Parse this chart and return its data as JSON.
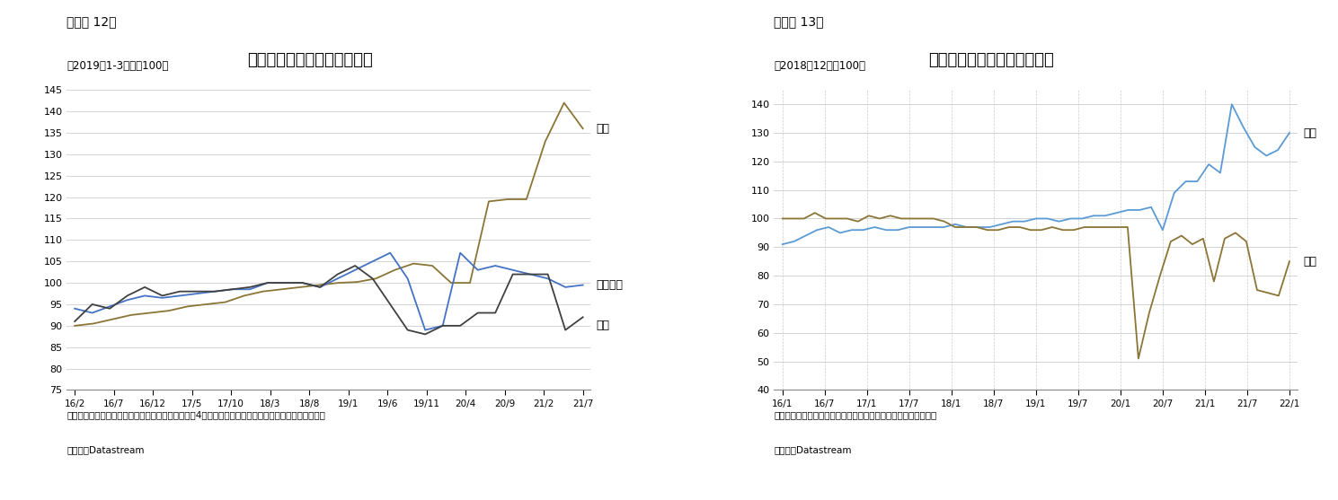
{
  "chart1": {
    "title": "日米欧の耗久財への消費支出",
    "subtitle": "（図表 12）",
    "sub_note": "（2019年1-3月期＝100）",
    "note_line": "（注）いずれも名目の季節調整値、ユーロ圈は主要4か国（ドイツ・フランス・イタリア・スペイン）",
    "source_line": "（資料）Datastream",
    "ylim": [
      75,
      145
    ],
    "yticks": [
      75,
      80,
      85,
      90,
      95,
      100,
      105,
      110,
      115,
      120,
      125,
      130,
      135,
      140,
      145
    ],
    "xtick_labels": [
      "16/2",
      "16/7",
      "16/12",
      "17/5",
      "17/10",
      "18/3",
      "18/8",
      "19/1",
      "19/6",
      "19/11",
      "20/4",
      "20/9",
      "21/2",
      "21/7"
    ],
    "us_color": "#8B7536",
    "euro_color": "#4472C4",
    "japan_color": "#404040",
    "us_label": "米国",
    "euro_label": "ユーロ圈",
    "japan_label": "日本",
    "us_data": [
      90.0,
      90.5,
      91.5,
      92.5,
      93.0,
      93.5,
      94.5,
      95.0,
      95.5,
      97.0,
      98.0,
      98.5,
      99.0,
      99.5,
      100.0,
      100.2,
      101.0,
      103.0,
      104.5,
      104.0,
      100.0,
      100.0,
      119.0,
      119.5,
      119.5,
      133.0,
      142.0,
      136.0
    ],
    "euro_data": [
      94.0,
      93.0,
      94.5,
      96.0,
      97.0,
      96.5,
      97.0,
      97.5,
      98.0,
      98.5,
      98.5,
      100.0,
      100.0,
      100.0,
      99.0,
      101.0,
      103.0,
      105.0,
      107.0,
      101.0,
      89.0,
      90.0,
      107.0,
      103.0,
      104.0,
      103.0,
      102.0,
      101.0,
      99.0,
      99.5
    ],
    "japan_data": [
      91.0,
      95.0,
      94.0,
      97.0,
      99.0,
      97.0,
      98.0,
      98.0,
      98.0,
      98.5,
      99.0,
      100.0,
      100.0,
      100.0,
      99.0,
      102.0,
      104.0,
      101.0,
      95.0,
      89.0,
      88.0,
      90.0,
      90.0,
      93.0,
      93.0,
      102.0,
      102.0,
      102.0,
      89.0,
      92.0
    ]
  },
  "chart2": {
    "title": "米国の自動車販売台数と金額",
    "subtitle": "（図表 13）",
    "sub_note": "（2018年12月＝100）",
    "note_line": "（注）季節調整値を指数化、自動車販売金額は小売売上高の内数",
    "source_line": "（資料）Datastream",
    "ylim": [
      40,
      145
    ],
    "yticks": [
      40,
      50,
      60,
      70,
      80,
      90,
      100,
      110,
      120,
      130,
      140
    ],
    "xtick_labels": [
      "16/1",
      "16/7",
      "17/1",
      "17/7",
      "18/1",
      "18/7",
      "19/1",
      "19/7",
      "20/1",
      "20/7",
      "21/1",
      "21/7",
      "22/1"
    ],
    "amount_color": "#5B9BD5",
    "units_color": "#8B7536",
    "amount_label": "金額",
    "units_label": "台数",
    "amount_data": [
      91.0,
      92.0,
      94.0,
      96.0,
      97.0,
      95.0,
      96.0,
      96.0,
      97.0,
      96.0,
      96.0,
      97.0,
      97.0,
      97.0,
      97.0,
      98.0,
      97.0,
      97.0,
      97.0,
      98.0,
      99.0,
      99.0,
      100.0,
      100.0,
      99.0,
      100.0,
      100.0,
      101.0,
      101.0,
      102.0,
      103.0,
      103.0,
      104.0,
      96.0,
      109.0,
      113.0,
      113.0,
      119.0,
      116.0,
      140.0,
      132.0,
      125.0,
      122.0,
      124.0,
      130.0
    ],
    "units_data": [
      100.0,
      100.0,
      100.0,
      102.0,
      100.0,
      100.0,
      100.0,
      99.0,
      101.0,
      100.0,
      101.0,
      100.0,
      100.0,
      100.0,
      100.0,
      99.0,
      97.0,
      97.0,
      97.0,
      96.0,
      96.0,
      97.0,
      97.0,
      96.0,
      96.0,
      97.0,
      96.0,
      96.0,
      97.0,
      97.0,
      97.0,
      97.0,
      97.0,
      51.0,
      67.0,
      80.0,
      92.0,
      94.0,
      91.0,
      93.0,
      78.0,
      93.0,
      95.0,
      92.0,
      75.0,
      74.0,
      73.0,
      85.0
    ]
  }
}
